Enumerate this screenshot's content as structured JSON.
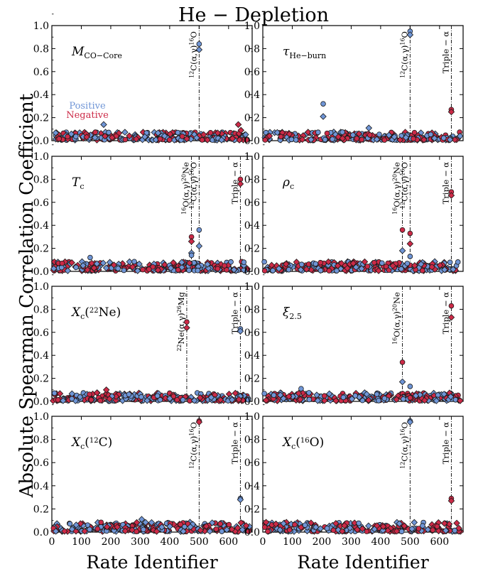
{
  "figure": {
    "title": "He − Depletion",
    "xlabel": "Rate Identifier",
    "ylabel": "Absolute Spearman Correlation Coefficient",
    "legend": {
      "positive": "Positive",
      "negative": "Negative"
    },
    "colors": {
      "positive": "#6f95d6",
      "negative": "#cc2a47",
      "edge": "#1a1a1a"
    }
  },
  "chart_data": [
    {
      "type": "scatter",
      "panel": "M_CO-Core",
      "label": {
        "main": "M",
        "sub": "CO−Core"
      },
      "xlim": [
        0,
        680
      ],
      "ylim": [
        0,
        1.0
      ],
      "xticks": [
        "0",
        "100",
        "200",
        "300",
        "400",
        "500",
        "600"
      ],
      "yticks": [
        "0.0",
        "0.2",
        "0.4",
        "0.6",
        "0.8",
        "1.0"
      ],
      "vlines": [
        {
          "x": 500,
          "label": "12C(α,γ)16O"
        }
      ],
      "legend_in_panel": true,
      "highlights": [
        {
          "x": 500,
          "y": 0.84,
          "sign": "positive",
          "marker": "circle"
        },
        {
          "x": 500,
          "y": 0.79,
          "sign": "positive",
          "marker": "diamond"
        },
        {
          "x": 633,
          "y": 0.14,
          "sign": "negative",
          "marker": "diamond"
        },
        {
          "x": 176,
          "y": 0.14,
          "sign": "positive",
          "marker": "diamond"
        },
        {
          "x": 642,
          "y": 0.09,
          "sign": "negative",
          "marker": "diamond"
        }
      ],
      "noise_max": 0.07
    },
    {
      "type": "scatter",
      "panel": "tau_He-burn",
      "label": {
        "main": "τ",
        "sub": "He−burn"
      },
      "xlim": [
        0,
        680
      ],
      "ylim": [
        0,
        1.0
      ],
      "xticks": [
        "0",
        "100",
        "200",
        "300",
        "400",
        "500",
        "600"
      ],
      "yticks": [
        "0.0",
        "0.2",
        "0.4",
        "0.6",
        "0.8",
        "1.0"
      ],
      "vlines": [
        {
          "x": 500,
          "label": "12C(α,γ)16O"
        },
        {
          "x": 640,
          "label": "Triple − α"
        }
      ],
      "highlights": [
        {
          "x": 500,
          "y": 0.95,
          "sign": "positive",
          "marker": "circle"
        },
        {
          "x": 500,
          "y": 0.92,
          "sign": "positive",
          "marker": "diamond"
        },
        {
          "x": 640,
          "y": 0.27,
          "sign": "negative",
          "marker": "circle"
        },
        {
          "x": 640,
          "y": 0.25,
          "sign": "negative",
          "marker": "diamond"
        },
        {
          "x": 205,
          "y": 0.32,
          "sign": "positive",
          "marker": "circle"
        },
        {
          "x": 205,
          "y": 0.21,
          "sign": "positive",
          "marker": "diamond"
        },
        {
          "x": 360,
          "y": 0.11,
          "sign": "positive",
          "marker": "diamond"
        }
      ],
      "noise_max": 0.07
    },
    {
      "type": "scatter",
      "panel": "T_c",
      "label": {
        "main": "T",
        "sub": "c"
      },
      "xlim": [
        0,
        680
      ],
      "ylim": [
        0,
        1.0
      ],
      "xticks": [
        "0",
        "100",
        "200",
        "300",
        "400",
        "500",
        "600"
      ],
      "yticks": [
        "0.0",
        "0.2",
        "0.4",
        "0.6",
        "0.8",
        "1.0"
      ],
      "vlines": [
        {
          "x": 474,
          "label": "16O(α,γ)20Ne"
        },
        {
          "x": 500,
          "label": "12C(α,γ)16O"
        },
        {
          "x": 640,
          "label": "Triple − α"
        }
      ],
      "highlights": [
        {
          "x": 640,
          "y": 0.8,
          "sign": "negative",
          "marker": "circle"
        },
        {
          "x": 640,
          "y": 0.76,
          "sign": "negative",
          "marker": "diamond"
        },
        {
          "x": 474,
          "y": 0.3,
          "sign": "negative",
          "marker": "circle"
        },
        {
          "x": 474,
          "y": 0.26,
          "sign": "negative",
          "marker": "diamond"
        },
        {
          "x": 474,
          "y": 0.16,
          "sign": "positive",
          "marker": "diamond"
        },
        {
          "x": 474,
          "y": 0.14,
          "sign": "positive",
          "marker": "circle"
        },
        {
          "x": 500,
          "y": 0.36,
          "sign": "positive",
          "marker": "circle"
        },
        {
          "x": 500,
          "y": 0.22,
          "sign": "positive",
          "marker": "diamond"
        },
        {
          "x": 130,
          "y": 0.12,
          "sign": "positive",
          "marker": "circle"
        }
      ],
      "noise_max": 0.08
    },
    {
      "type": "scatter",
      "panel": "rho_c",
      "label": {
        "main": "ρ",
        "sub": "c"
      },
      "xlim": [
        0,
        680
      ],
      "ylim": [
        0,
        1.0
      ],
      "xticks": [
        "0",
        "100",
        "200",
        "300",
        "400",
        "500",
        "600"
      ],
      "yticks": [
        "0.0",
        "0.2",
        "0.4",
        "0.6",
        "0.8",
        "1.0"
      ],
      "vlines": [
        {
          "x": 474,
          "label": "16O(α,γ)20Ne"
        },
        {
          "x": 500,
          "label": "12C(α,γ)16O"
        },
        {
          "x": 640,
          "label": "Triple − α"
        }
      ],
      "highlights": [
        {
          "x": 640,
          "y": 0.69,
          "sign": "negative",
          "marker": "circle"
        },
        {
          "x": 640,
          "y": 0.66,
          "sign": "negative",
          "marker": "diamond"
        },
        {
          "x": 474,
          "y": 0.36,
          "sign": "negative",
          "marker": "circle"
        },
        {
          "x": 474,
          "y": 0.18,
          "sign": "positive",
          "marker": "diamond"
        },
        {
          "x": 500,
          "y": 0.33,
          "sign": "negative",
          "marker": "circle"
        },
        {
          "x": 500,
          "y": 0.24,
          "sign": "negative",
          "marker": "diamond"
        },
        {
          "x": 500,
          "y": 0.13,
          "sign": "positive",
          "marker": "circle"
        }
      ],
      "noise_max": 0.08
    },
    {
      "type": "scatter",
      "panel": "X_c(22Ne)",
      "label": {
        "main": "X",
        "sub": "c",
        "suffix": "(22Ne)"
      },
      "xlim": [
        0,
        680
      ],
      "ylim": [
        0,
        1.0
      ],
      "xticks": [
        "0",
        "100",
        "200",
        "300",
        "400",
        "500",
        "600"
      ],
      "yticks": [
        "0.0",
        "0.2",
        "0.4",
        "0.6",
        "0.8",
        "1.0"
      ],
      "vlines": [
        {
          "x": 458,
          "label": "22Ne(α,γ)26Mg"
        },
        {
          "x": 640,
          "label": "Triple − α"
        }
      ],
      "highlights": [
        {
          "x": 458,
          "y": 0.69,
          "sign": "negative",
          "marker": "circle"
        },
        {
          "x": 458,
          "y": 0.64,
          "sign": "negative",
          "marker": "diamond"
        },
        {
          "x": 640,
          "y": 0.63,
          "sign": "positive",
          "marker": "circle"
        },
        {
          "x": 640,
          "y": 0.61,
          "sign": "positive",
          "marker": "diamond"
        },
        {
          "x": 185,
          "y": 0.1,
          "sign": "negative",
          "marker": "diamond"
        }
      ],
      "noise_max": 0.07
    },
    {
      "type": "scatter",
      "panel": "xi_2.5",
      "label": {
        "main": "ξ",
        "sub": "2.5"
      },
      "xlim": [
        0,
        680
      ],
      "ylim": [
        0,
        1.0
      ],
      "xticks": [
        "0",
        "100",
        "200",
        "300",
        "400",
        "500",
        "600"
      ],
      "yticks": [
        "0.0",
        "0.2",
        "0.4",
        "0.6",
        "0.8",
        "1.0"
      ],
      "vlines": [
        {
          "x": 474,
          "label": "16O(α,γ)20Ne"
        },
        {
          "x": 640,
          "label": "Triple − α"
        }
      ],
      "highlights": [
        {
          "x": 640,
          "y": 0.83,
          "sign": "negative",
          "marker": "circle"
        },
        {
          "x": 640,
          "y": 0.73,
          "sign": "negative",
          "marker": "diamond"
        },
        {
          "x": 474,
          "y": 0.34,
          "sign": "negative",
          "marker": "circle"
        },
        {
          "x": 474,
          "y": 0.17,
          "sign": "positive",
          "marker": "diamond"
        },
        {
          "x": 500,
          "y": 0.13,
          "sign": "positive",
          "marker": "circle"
        },
        {
          "x": 130,
          "y": 0.11,
          "sign": "positive",
          "marker": "circle"
        }
      ],
      "noise_max": 0.07
    },
    {
      "type": "scatter",
      "panel": "X_c(12C)",
      "label": {
        "main": "X",
        "sub": "c",
        "suffix": "(12C)"
      },
      "xlim": [
        0,
        680
      ],
      "ylim": [
        0,
        1.0
      ],
      "xticks": [
        "0",
        "100",
        "200",
        "300",
        "400",
        "500",
        "600"
      ],
      "yticks": [
        "0.0",
        "0.2",
        "0.4",
        "0.6",
        "0.8",
        "1.0"
      ],
      "vlines": [
        {
          "x": 500,
          "label": "12C(α,γ)16O"
        },
        {
          "x": 640,
          "label": "Triple − α"
        }
      ],
      "highlights": [
        {
          "x": 500,
          "y": 0.96,
          "sign": "negative",
          "marker": "circle"
        },
        {
          "x": 500,
          "y": 0.95,
          "sign": "negative",
          "marker": "diamond"
        },
        {
          "x": 640,
          "y": 0.29,
          "sign": "positive",
          "marker": "circle"
        },
        {
          "x": 640,
          "y": 0.28,
          "sign": "positive",
          "marker": "diamond"
        },
        {
          "x": 305,
          "y": 0.11,
          "sign": "positive",
          "marker": "diamond"
        }
      ],
      "noise_max": 0.08
    },
    {
      "type": "scatter",
      "panel": "X_c(16O)",
      "label": {
        "main": "X",
        "sub": "c",
        "suffix": "(16O)"
      },
      "xlim": [
        0,
        680
      ],
      "ylim": [
        0,
        1.0
      ],
      "xticks": [
        "0",
        "100",
        "200",
        "300",
        "400",
        "500",
        "600"
      ],
      "yticks": [
        "0.0",
        "0.2",
        "0.4",
        "0.6",
        "0.8",
        "1.0"
      ],
      "vlines": [
        {
          "x": 500,
          "label": "12C(α,γ)16O"
        },
        {
          "x": 640,
          "label": "Triple − α"
        }
      ],
      "highlights": [
        {
          "x": 500,
          "y": 0.96,
          "sign": "positive",
          "marker": "circle"
        },
        {
          "x": 500,
          "y": 0.95,
          "sign": "positive",
          "marker": "diamond"
        },
        {
          "x": 640,
          "y": 0.29,
          "sign": "negative",
          "marker": "circle"
        },
        {
          "x": 640,
          "y": 0.27,
          "sign": "negative",
          "marker": "diamond"
        }
      ],
      "noise_max": 0.08
    }
  ]
}
